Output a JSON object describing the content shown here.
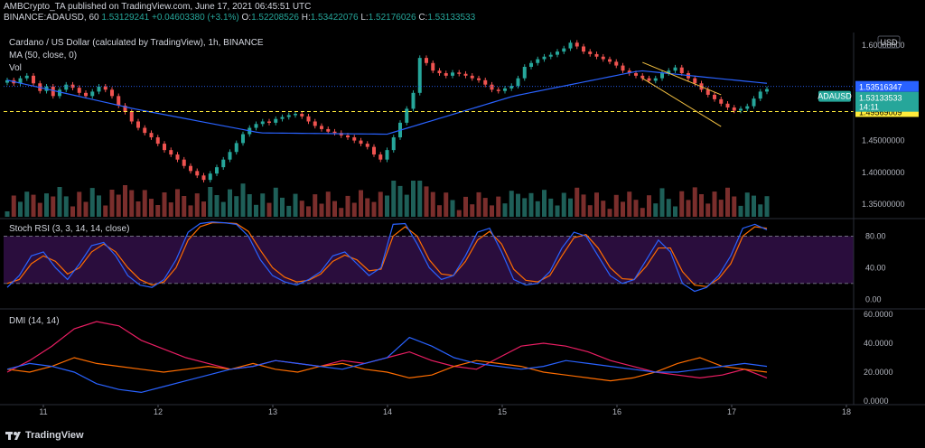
{
  "header": {
    "line1": "AMBCrypto_TA published on TradingView.com, June 17, 2021 06:45:51 UTC",
    "line2_symbol": "BINANCE:ADAUSD, 60",
    "line2_last": "1.53129241",
    "line2_change": "+0.04603380 (+3.1%)",
    "o_label": "O:",
    "o_val": "1.52208526",
    "h_label": "H:",
    "h_val": "1.53422076",
    "l_label": "L:",
    "l_val": "1.52176026",
    "c_label": "C:",
    "c_val": "1.53133533"
  },
  "main_pane": {
    "title": "Cardano / US Dollar (calculated by TradingView), 1h, BINANCE",
    "ma_label": "MA (50, close, 0)",
    "vol_label": "Vol",
    "currency": "USD",
    "price_ticks": [
      "1.60000000",
      "1.50000000",
      "1.45000000",
      "1.40000000",
      "1.35000000"
    ],
    "symbol_tag": "ADAUSD",
    "last_price": "1.53133533",
    "countdown": "14:11",
    "ma_value": "1.53516347",
    "support_level": "1.49569009",
    "colors": {
      "up": "#26a69a",
      "down": "#ef5350",
      "ma": "#2962ff",
      "support": "#ffeb3b",
      "channel": "#f5c242"
    }
  },
  "stoch_pane": {
    "label": "Stoch RSI (3, 3, 14, 14, close)",
    "ticks": [
      "80.00",
      "40.00",
      "0.00"
    ],
    "colors": {
      "k": "#2962ff",
      "d": "#ff6d00",
      "band": "#2a0d3d"
    }
  },
  "dmi_pane": {
    "label": "DMI (14, 14)",
    "ticks": [
      "60.0000",
      "40.0000",
      "20.0000",
      "0.0000"
    ],
    "colors": {
      "plus": "#2962ff",
      "minus": "#ff6d00",
      "adx": "#e91e63"
    }
  },
  "time_axis": [
    "11",
    "12",
    "13",
    "14",
    "15",
    "16",
    "17",
    "18"
  ],
  "footer": {
    "brand": "TradingView"
  },
  "chart_data": {
    "type": "line",
    "title": "Cardano / US Dollar (calculated by TradingView), 1h, BINANCE",
    "x": [
      "11",
      "12",
      "13",
      "14",
      "15",
      "16",
      "17"
    ],
    "price_ylim": [
      1.33,
      1.62
    ],
    "series": [
      {
        "name": "MA (50, close, 0)",
        "values": [
          1.545,
          1.5,
          1.462,
          1.46,
          1.52,
          1.56,
          1.54
        ]
      }
    ],
    "candles_close": [
      1.545,
      1.54,
      1.548,
      1.552,
      1.54,
      1.528,
      1.535,
      1.52,
      1.53,
      1.538,
      1.533,
      1.525,
      1.52,
      1.527,
      1.535,
      1.53,
      1.52,
      1.505,
      1.495,
      1.48,
      1.47,
      1.462,
      1.455,
      1.445,
      1.435,
      1.428,
      1.42,
      1.41,
      1.402,
      1.395,
      1.388,
      1.398,
      1.408,
      1.42,
      1.432,
      1.446,
      1.46,
      1.47,
      1.476,
      1.48,
      1.478,
      1.484,
      1.487,
      1.49,
      1.492,
      1.488,
      1.48,
      1.473,
      1.468,
      1.464,
      1.462,
      1.458,
      1.455,
      1.45,
      1.445,
      1.44,
      1.428,
      1.42,
      1.435,
      1.455,
      1.478,
      1.5,
      1.525,
      1.58,
      1.572,
      1.56,
      1.556,
      1.552,
      1.557,
      1.555,
      1.552,
      1.548,
      1.545,
      1.538,
      1.53,
      1.528,
      1.532,
      1.536,
      1.548,
      1.566,
      1.572,
      1.578,
      1.582,
      1.585,
      1.59,
      1.595,
      1.604,
      1.598,
      1.59,
      1.586,
      1.582,
      1.578,
      1.574,
      1.568,
      1.56,
      1.556,
      1.552,
      1.548,
      1.544,
      1.548,
      1.556,
      1.56,
      1.565,
      1.556,
      1.548,
      1.54,
      1.53,
      1.522,
      1.515,
      1.508,
      1.502,
      1.497,
      1.5,
      1.504,
      1.516,
      1.527,
      1.531
    ],
    "support": 1.49569009,
    "ma_last": 1.53516347,
    "stoch_ylim": [
      -10,
      100
    ],
    "stoch_k": [
      15,
      30,
      55,
      60,
      40,
      25,
      45,
      68,
      72,
      55,
      30,
      18,
      15,
      25,
      50,
      85,
      96,
      98,
      97,
      95,
      80,
      50,
      30,
      22,
      18,
      25,
      35,
      55,
      60,
      45,
      30,
      40,
      95,
      96,
      70,
      40,
      25,
      30,
      55,
      85,
      90,
      60,
      25,
      18,
      20,
      35,
      65,
      85,
      80,
      55,
      30,
      20,
      25,
      50,
      75,
      60,
      20,
      10,
      15,
      30,
      55,
      90,
      95,
      88
    ],
    "stoch_d": [
      20,
      25,
      45,
      55,
      48,
      32,
      40,
      60,
      70,
      60,
      40,
      25,
      18,
      22,
      40,
      75,
      92,
      97,
      97,
      96,
      86,
      62,
      40,
      28,
      22,
      24,
      32,
      48,
      56,
      50,
      36,
      38,
      80,
      92,
      80,
      50,
      32,
      30,
      48,
      75,
      86,
      70,
      38,
      24,
      22,
      30,
      55,
      78,
      82,
      65,
      40,
      26,
      25,
      42,
      65,
      65,
      35,
      18,
      16,
      26,
      45,
      80,
      92,
      90
    ],
    "dmi_ylim": [
      0,
      60
    ],
    "dmi_plus": [
      22,
      26,
      24,
      20,
      12,
      8,
      6,
      10,
      14,
      18,
      22,
      24,
      28,
      26,
      24,
      22,
      26,
      30,
      44,
      38,
      30,
      26,
      24,
      22,
      24,
      28,
      26,
      24,
      22,
      20,
      20,
      22,
      24,
      26,
      24
    ],
    "dmi_minus": [
      22,
      20,
      24,
      30,
      26,
      24,
      22,
      20,
      22,
      24,
      22,
      26,
      22,
      20,
      24,
      26,
      22,
      20,
      16,
      18,
      24,
      28,
      26,
      24,
      20,
      18,
      16,
      14,
      16,
      20,
      26,
      30,
      24,
      22,
      20
    ],
    "dmi_adx": [
      20,
      28,
      38,
      50,
      55,
      52,
      42,
      36,
      30,
      26,
      22,
      24,
      28,
      26,
      24,
      28,
      26,
      30,
      34,
      28,
      24,
      22,
      30,
      38,
      40,
      38,
      34,
      28,
      24,
      20,
      18,
      16,
      18,
      22,
      16
    ]
  }
}
